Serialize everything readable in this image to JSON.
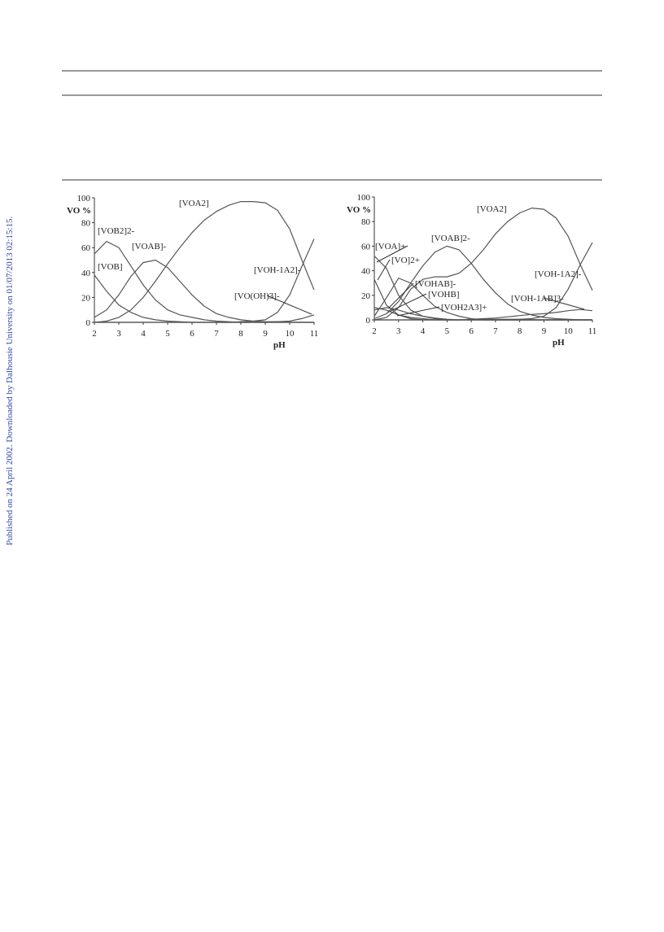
{
  "side_note": "Published on 24 April 2002. Downloaded by Dalhousie University on 01/07/2013 02:15:15.",
  "chart_data": [
    {
      "type": "line",
      "color": "#555555",
      "xlabel": "pH",
      "ylabel": "VO %",
      "x": [
        2,
        2.5,
        3,
        3.5,
        4,
        4.5,
        5,
        5.5,
        6,
        6.5,
        7,
        7.5,
        8,
        8.5,
        9,
        9.5,
        10,
        10.5,
        11
      ],
      "xlim": [
        2,
        11
      ],
      "xticks": [
        2,
        3,
        4,
        5,
        6,
        7,
        8,
        9,
        10,
        11
      ],
      "ylim": [
        0,
        100
      ],
      "yticks": [
        0,
        20,
        40,
        60,
        80,
        100
      ],
      "series": [
        {
          "name": "[VOB]",
          "values": [
            38,
            25,
            14,
            8,
            4,
            2,
            1,
            0.5,
            0,
            0,
            0,
            0,
            0,
            0,
            0,
            0,
            0,
            0,
            0
          ]
        },
        {
          "name": "[VOB2]2-",
          "values": [
            55,
            65,
            60,
            45,
            30,
            18,
            10,
            6,
            4,
            2,
            1,
            0.5,
            0,
            0,
            0,
            0,
            0,
            0,
            0
          ]
        },
        {
          "name": "[VOAB]-",
          "values": [
            4,
            10,
            22,
            37,
            48,
            50,
            44,
            33,
            22,
            13,
            7,
            4,
            2,
            1,
            0.5,
            0.5,
            0,
            0,
            0
          ]
        },
        {
          "name": "[VOA2]",
          "values": [
            0,
            1,
            4,
            10,
            20,
            33,
            47,
            60,
            72,
            82,
            89,
            94,
            97,
            97,
            96,
            90,
            75,
            50,
            26
          ]
        },
        {
          "name": "[VOH-1A2]-",
          "values": [
            0,
            0,
            0,
            0,
            0,
            0,
            0,
            0,
            0,
            0,
            0,
            0,
            0.5,
            1,
            2,
            8,
            22,
            45,
            67
          ]
        },
        {
          "name": "[VO(OH)3]-",
          "values": [
            0,
            0,
            0,
            0,
            0,
            0,
            0,
            0,
            0,
            0,
            0,
            0,
            0,
            0,
            0,
            0.5,
            1,
            3,
            6
          ]
        }
      ]
    },
    {
      "type": "line",
      "color": "#555555",
      "xlabel": "pH",
      "ylabel": "VO %",
      "x": [
        2,
        2.5,
        3,
        3.5,
        4,
        4.5,
        5,
        5.5,
        6,
        6.5,
        7,
        7.5,
        8,
        8.5,
        9,
        9.5,
        10,
        10.5,
        11
      ],
      "xlim": [
        2,
        11
      ],
      "xticks": [
        2,
        3,
        4,
        5,
        6,
        7,
        8,
        9,
        10,
        11
      ],
      "ylim": [
        0,
        100
      ],
      "yticks": [
        0,
        20,
        40,
        60,
        80,
        100
      ],
      "series": [
        {
          "name": "[VOA]+",
          "values": [
            52,
            42,
            20,
            8,
            3,
            1,
            0,
            0,
            0,
            0,
            0,
            0,
            0,
            0,
            0,
            0,
            0,
            0,
            0
          ]
        },
        {
          "name": "[VO]2+",
          "values": [
            33,
            12,
            4,
            1,
            0,
            0,
            0,
            0,
            0,
            0,
            0,
            0,
            0,
            0,
            0,
            0,
            0,
            0,
            0
          ]
        },
        {
          "name": "[VOAB]2-",
          "values": [
            1,
            5,
            15,
            30,
            44,
            55,
            60,
            57,
            46,
            33,
            22,
            13,
            7,
            4,
            2,
            1,
            0.5,
            0,
            0
          ]
        },
        {
          "name": "[VOA2]",
          "values": [
            0,
            2,
            10,
            25,
            33,
            35,
            35,
            38,
            46,
            57,
            70,
            80,
            87,
            91,
            90,
            83,
            68,
            45,
            24
          ]
        },
        {
          "name": "[VOHAB]-",
          "values": [
            3,
            18,
            34,
            30,
            20,
            11,
            6,
            3,
            1,
            0,
            0,
            0,
            0,
            0,
            0,
            0,
            0,
            0,
            0
          ]
        },
        {
          "name": "[VOHB]",
          "values": [
            8,
            10,
            8,
            5,
            3,
            1.5,
            0.5,
            0,
            0,
            0,
            0,
            0,
            0,
            0,
            0,
            0,
            0,
            0,
            0
          ]
        },
        {
          "name": "[VOH2A3]+",
          "values": [
            10,
            8,
            4,
            2,
            1,
            0,
            0,
            0,
            0,
            0,
            0,
            0,
            0,
            0,
            0,
            0,
            0,
            0,
            0
          ]
        },
        {
          "name": "[VOH-1A2]-",
          "values": [
            0,
            0,
            0,
            0,
            0,
            0,
            0,
            0,
            0.5,
            0.5,
            0.5,
            0.5,
            0.5,
            1,
            3,
            10,
            25,
            45,
            63
          ]
        },
        {
          "name": "[VOH-1AB]3-",
          "values": [
            0,
            0,
            0,
            0,
            0,
            0,
            0,
            0,
            0.5,
            1,
            1.5,
            2.5,
            3.5,
            4.5,
            5,
            6,
            7.5,
            8.5,
            7.5
          ]
        }
      ]
    }
  ]
}
